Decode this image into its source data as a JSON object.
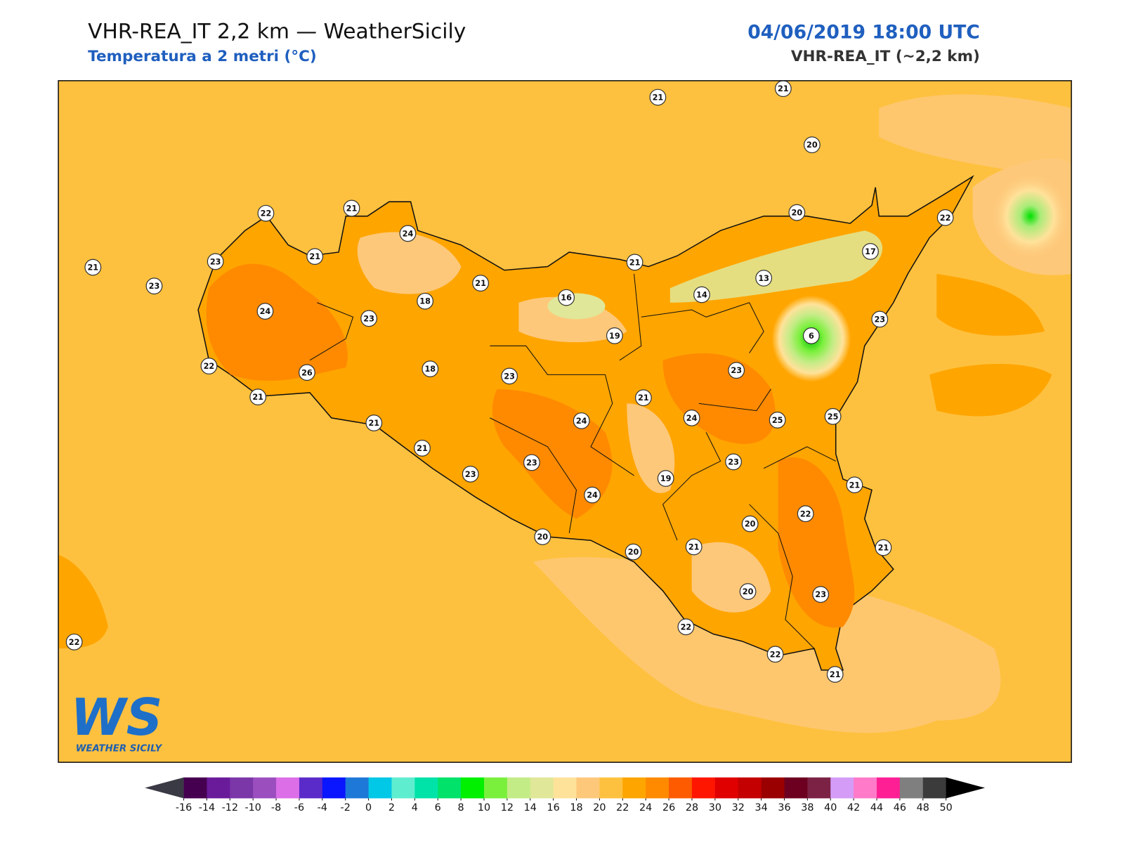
{
  "header": {
    "title": "VHR-REA_IT 2,2 km — WeatherSicily",
    "subtitle": "Temperatura a 2 metri (°C)",
    "date": "04/06/2019 18:00 UTC",
    "model": "VHR-REA_IT (~2,2 km)"
  },
  "map": {
    "stations": [
      21,
      21,
      20,
      22,
      21,
      24,
      20,
      22,
      21,
      23,
      21,
      23,
      21,
      17,
      21,
      13,
      16,
      14,
      18,
      24,
      23,
      23,
      19,
      6,
      22,
      26,
      18,
      23,
      23,
      21,
      21,
      21,
      24,
      24,
      25,
      25,
      21,
      23,
      23,
      23,
      19,
      21,
      24,
      22,
      20,
      20,
      20,
      21,
      21,
      20,
      23,
      22,
      22,
      22,
      21
    ]
  },
  "colorbar": {
    "ticks": [
      -16,
      -14,
      -12,
      -10,
      -8,
      -6,
      -4,
      -2,
      0,
      2,
      4,
      6,
      8,
      10,
      12,
      14,
      16,
      18,
      20,
      22,
      24,
      26,
      28,
      30,
      32,
      34,
      36,
      38,
      40,
      42,
      44,
      46,
      48,
      50
    ],
    "colors": [
      "#460050",
      "#6a1b9a",
      "#7b36a8",
      "#9b4fbf",
      "#dc6ee8",
      "#5b2bc9",
      "#0a16ff",
      "#1e78d8",
      "#00c8e6",
      "#5fedcf",
      "#00e3a8",
      "#00e26a",
      "#00f000",
      "#7af03c",
      "#c3ec86",
      "#e0e798",
      "#ffe29a",
      "#fec87a",
      "#fec13f",
      "#ffa500",
      "#ff8a00",
      "#fe5a00",
      "#ff1600",
      "#e00000",
      "#c40000",
      "#9b0000",
      "#6d0020",
      "#7b2245",
      "#d49cf7",
      "#ff7ac8",
      "#ff1f95",
      "#7f7f7f",
      "#3b3b3b"
    ],
    "under_color": "#3a3a45",
    "over_color": "#000000"
  },
  "logo": {
    "mark": "WS",
    "name": "WEATHER SICILY"
  }
}
